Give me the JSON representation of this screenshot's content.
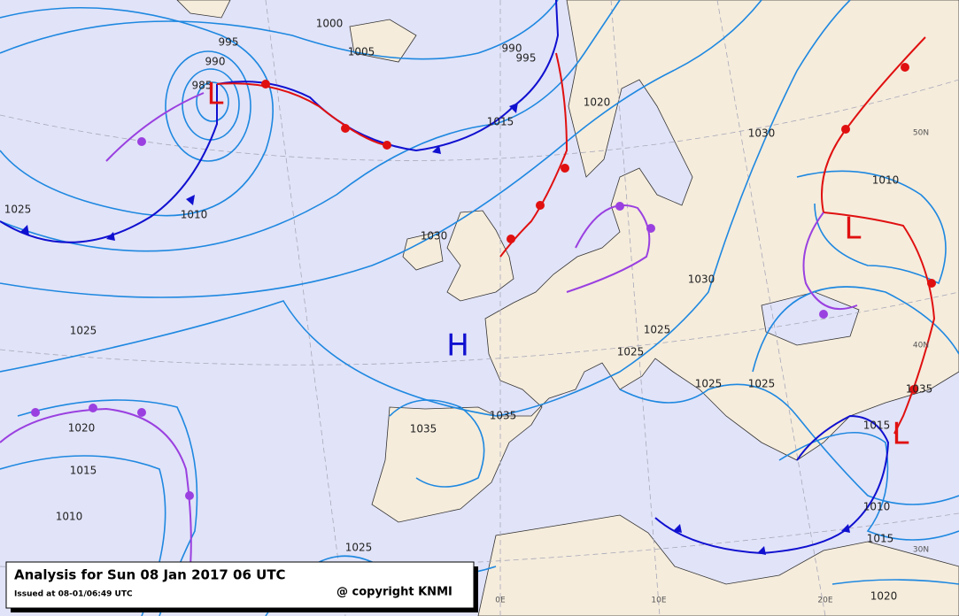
{
  "header": {
    "title": "Analysis for Sun 08 Jan 2017 06 UTC",
    "issued": "Issued at 08-01/06:49 UTC",
    "copyright": "@ copyright KNMI"
  },
  "isobar_labels": [
    "995",
    "990",
    "985",
    "1000",
    "1005",
    "990",
    "995",
    "1015",
    "1020",
    "1030",
    "1010",
    "1025",
    "1010",
    "1030",
    "1030",
    "1025",
    "1025",
    "1025",
    "1025",
    "1025",
    "1035",
    "1035",
    "1020",
    "1015",
    "1010",
    "1025",
    "1010",
    "1015",
    "1020",
    "1035",
    "1015"
  ],
  "pressure_centers": [
    "L",
    "H",
    "L",
    "L"
  ],
  "graticule_labels": [
    "50N",
    "40N",
    "30N",
    "0E",
    "10E",
    "20E"
  ]
}
